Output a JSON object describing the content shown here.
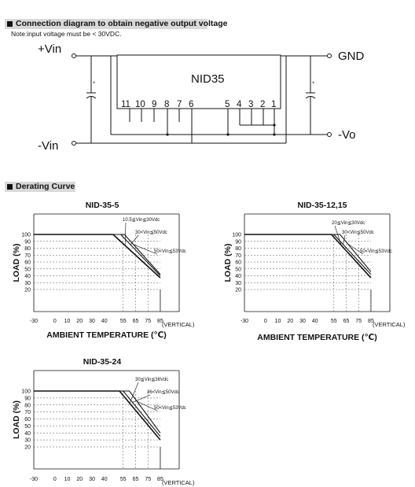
{
  "sections": {
    "connection_title": "Connection diagram to obtain negative output voltage",
    "note": "Note:input voltage must be < 30VDC.",
    "derating_title": "Derating Curve"
  },
  "diagram": {
    "module_label": "NID35",
    "vin_plus": "+Vin",
    "vin_minus": "-Vin",
    "gnd": "GND",
    "vo": "-Vo",
    "cap_polarity": "+",
    "pins": [
      "11",
      "10",
      "9",
      "8",
      "7",
      "6",
      "5",
      "4",
      "3",
      "2",
      "1"
    ]
  },
  "chart_data": [
    {
      "type": "line",
      "title": "NID-35-5",
      "xlabel": "AMBIENT TEMPERATURE (℃)",
      "ylabel": "LOAD (%)",
      "x_ticks": [
        -30,
        0,
        10,
        20,
        30,
        40,
        55,
        65,
        75,
        85
      ],
      "y_ticks": [
        20,
        30,
        40,
        50,
        60,
        70,
        80,
        90,
        100
      ],
      "x_note": "(VERTICAL)",
      "series": [
        {
          "name": "10.5≦Vin≦30Vdc",
          "points": [
            [
              -30,
              100
            ],
            [
              47,
              100
            ],
            [
              85,
              37
            ]
          ]
        },
        {
          "name": "30<Vin≦50Vdc",
          "points": [
            [
              -30,
              100
            ],
            [
              53,
              100
            ],
            [
              85,
              40
            ]
          ]
        },
        {
          "name": "50<Vin≦53Vdc",
          "points": [
            [
              -30,
              100
            ],
            [
              56,
              100
            ],
            [
              85,
              42
            ]
          ]
        }
      ]
    },
    {
      "type": "line",
      "title": "NID-35-12,15",
      "xlabel": "AMBIENT TEMPERATURE (℃)",
      "ylabel": "LOAD (%)",
      "x_ticks": [
        -30,
        0,
        10,
        20,
        30,
        40,
        55,
        65,
        75,
        85
      ],
      "y_ticks": [
        20,
        30,
        40,
        50,
        60,
        70,
        80,
        90,
        100
      ],
      "x_note": "(VERTICAL)",
      "series": [
        {
          "name": "20≦Vin≦30Vdc",
          "points": [
            [
              -30,
              100
            ],
            [
              53,
              100
            ],
            [
              85,
              37
            ]
          ]
        },
        {
          "name": "30<Vin≦50Vdc",
          "points": [
            [
              -30,
              100
            ],
            [
              55,
              100
            ],
            [
              85,
              42
            ]
          ]
        },
        {
          "name": "50<Vin≦53Vdc",
          "points": [
            [
              -30,
              100
            ],
            [
              60,
              100
            ],
            [
              85,
              46
            ]
          ]
        }
      ]
    },
    {
      "type": "line",
      "title": "NID-35-24",
      "ylabel": "LOAD (%)",
      "x_ticks": [
        -30,
        0,
        10,
        20,
        30,
        40,
        55,
        65,
        75,
        85
      ],
      "y_ticks": [
        20,
        30,
        40,
        50,
        60,
        70,
        80,
        90,
        100
      ],
      "x_note": "(VERTICAL)",
      "series": [
        {
          "name": "30≦Vin≦36Vdc",
          "points": [
            [
              -30,
              100
            ],
            [
              52,
              100
            ],
            [
              85,
              30
            ]
          ]
        },
        {
          "name": "36<Vin≦50Vdc",
          "points": [
            [
              -30,
              100
            ],
            [
              55,
              100
            ],
            [
              85,
              35
            ]
          ]
        },
        {
          "name": "50<Vin≦53Vdc",
          "points": [
            [
              -30,
              100
            ],
            [
              60,
              100
            ],
            [
              85,
              40
            ]
          ]
        }
      ]
    }
  ]
}
